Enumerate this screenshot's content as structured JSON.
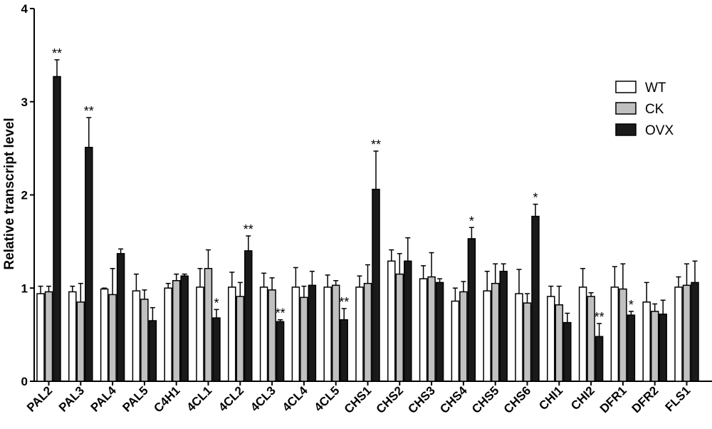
{
  "chart_data": {
    "type": "bar",
    "ylabel": "Relative transcript level",
    "xlabel": "",
    "ylim": [
      0,
      4
    ],
    "yticks": [
      "0",
      "1",
      "2",
      "3",
      "4"
    ],
    "legend_position": "top-right",
    "categories": [
      "PAL2",
      "PAL3",
      "PAL4",
      "PAL5",
      "C4H1",
      "4CL1",
      "4CL2",
      "4CL3",
      "4CL4",
      "4CL5",
      "CHS1",
      "CHS2",
      "CHS3",
      "CHS4",
      "CHS5",
      "CHS6",
      "CHI1",
      "CHI2",
      "DFR1",
      "DFR2",
      "FLS1"
    ],
    "series": [
      {
        "name": "WT",
        "color": "#ffffff",
        "values": [
          0.94,
          0.96,
          0.99,
          0.97,
          1.0,
          1.01,
          1.01,
          1.01,
          1.01,
          1.01,
          1.01,
          1.29,
          1.1,
          0.86,
          0.97,
          0.94,
          0.91,
          1.01,
          1.01,
          0.85,
          1.01
        ],
        "errors": [
          0.08,
          0.06,
          0.01,
          0.18,
          0.05,
          0.2,
          0.16,
          0.15,
          0.21,
          0.13,
          0.12,
          0.12,
          0.14,
          0.14,
          0.21,
          0.26,
          0.11,
          0.2,
          0.22,
          0.21,
          0.11
        ]
      },
      {
        "name": "CK",
        "color": "#c0c0c0",
        "values": [
          0.96,
          0.85,
          0.93,
          0.88,
          1.08,
          1.21,
          0.91,
          0.98,
          0.9,
          1.03,
          1.05,
          1.15,
          1.12,
          0.96,
          1.05,
          0.84,
          0.82,
          0.91,
          0.99,
          0.75,
          1.03
        ],
        "errors": [
          0.06,
          0.2,
          0.28,
          0.1,
          0.07,
          0.2,
          0.15,
          0.13,
          0.12,
          0.05,
          0.2,
          0.22,
          0.26,
          0.11,
          0.21,
          0.1,
          0.2,
          0.04,
          0.27,
          0.08,
          0.23
        ]
      },
      {
        "name": "OVX",
        "color": "#1a1a1a",
        "values": [
          3.27,
          2.51,
          1.37,
          0.65,
          1.13,
          0.68,
          1.4,
          0.64,
          1.03,
          0.66,
          2.06,
          1.29,
          1.06,
          1.53,
          1.18,
          1.77,
          0.63,
          0.48,
          0.71,
          0.72,
          1.06
        ],
        "errors": [
          0.18,
          0.32,
          0.05,
          0.14,
          0.02,
          0.09,
          0.16,
          0.02,
          0.15,
          0.12,
          0.41,
          0.25,
          0.04,
          0.12,
          0.08,
          0.13,
          0.1,
          0.14,
          0.04,
          0.15,
          0.23
        ]
      }
    ],
    "significance": [
      "**",
      "**",
      "",
      "",
      "",
      "*",
      "**",
      "**",
      "",
      "**",
      "**",
      "",
      "",
      "*",
      "",
      "*",
      "",
      "**",
      "*",
      "",
      ""
    ]
  }
}
